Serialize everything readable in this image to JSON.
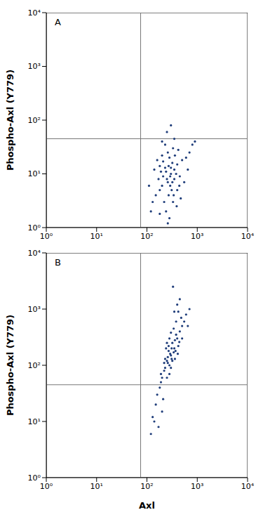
{
  "chart_data": [
    {
      "type": "scatter",
      "annotation": "A",
      "ylabel": "Phospho-Axl (Y779)",
      "log": true,
      "color": "#1f3d7a",
      "xlim": [
        1,
        10000
      ],
      "ylim": [
        1,
        10000
      ],
      "xticks": [
        {
          "value": 1,
          "label": "10⁰"
        },
        {
          "value": 10,
          "label": "10¹"
        },
        {
          "value": 100,
          "label": "10²"
        },
        {
          "value": 1000,
          "label": "10³"
        },
        {
          "value": 10000,
          "label": "10⁴"
        }
      ],
      "yticks": [
        {
          "value": 1,
          "label": "10⁰"
        },
        {
          "value": 10,
          "label": "10¹"
        },
        {
          "value": 100,
          "label": "10²"
        },
        {
          "value": 1000,
          "label": "10³"
        },
        {
          "value": 10000,
          "label": "10⁴"
        }
      ],
      "quadrant": {
        "x": 75,
        "y": 45
      },
      "x": [
        250,
        300,
        200,
        350,
        180,
        400,
        280,
        220,
        320,
        260,
        150,
        450,
        500,
        240,
        330,
        190,
        270,
        310,
        210,
        360,
        130,
        170,
        230,
        290,
        340,
        380,
        420,
        600,
        700,
        800,
        900,
        120,
        110,
        140,
        160,
        200,
        250,
        300,
        350,
        280,
        260,
        180,
        390,
        470,
        550,
        650,
        230,
        320,
        270,
        240,
        300,
        210,
        350,
        400,
        260,
        200,
        330,
        180,
        440,
        290
      ],
      "values": [
        8,
        10,
        6,
        12,
        5,
        15,
        20,
        3,
        7,
        25,
        4,
        9,
        18,
        2,
        30,
        11,
        14,
        5,
        9,
        22,
        3,
        8,
        13,
        6,
        4,
        10,
        28,
        20,
        25,
        35,
        40,
        2,
        6,
        12,
        18,
        40,
        60,
        80,
        45,
        1.5,
        1.2,
        1.8,
        2.5,
        3.5,
        7,
        12,
        35,
        16,
        4,
        11,
        13,
        17,
        8,
        5,
        7,
        22,
        3,
        14,
        6,
        9
      ]
    },
    {
      "type": "scatter",
      "annotation": "B",
      "ylabel": "Phospho-Axl (Y779)",
      "xlabel": "Axl",
      "log": true,
      "color": "#1f3d7a",
      "xlim": [
        1,
        10000
      ],
      "ylim": [
        1,
        10000
      ],
      "xticks": [
        {
          "value": 1,
          "label": "10⁰"
        },
        {
          "value": 10,
          "label": "10¹"
        },
        {
          "value": 100,
          "label": "10²"
        },
        {
          "value": 1000,
          "label": "10³"
        },
        {
          "value": 10000,
          "label": "10⁴"
        }
      ],
      "yticks": [
        {
          "value": 1,
          "label": "10⁰"
        },
        {
          "value": 10,
          "label": "10¹"
        },
        {
          "value": 100,
          "label": "10²"
        },
        {
          "value": 1000,
          "label": "10³"
        },
        {
          "value": 10000,
          "label": "10⁴"
        }
      ],
      "quadrant": {
        "x": 75,
        "y": 45
      },
      "x": [
        300,
        250,
        350,
        400,
        280,
        220,
        450,
        500,
        320,
        270,
        200,
        180,
        230,
        380,
        420,
        260,
        340,
        300,
        240,
        360,
        480,
        550,
        400,
        350,
        450,
        330,
        600,
        700,
        650,
        160,
        150,
        140,
        170,
        200,
        210,
        190,
        130,
        120,
        250,
        280,
        310,
        290,
        260,
        230,
        270,
        320,
        370,
        410,
        440,
        300,
        280,
        340,
        250,
        220,
        190,
        360,
        500,
        380,
        420,
        310
      ],
      "values": [
        150,
        120,
        200,
        300,
        100,
        80,
        400,
        500,
        250,
        180,
        60,
        40,
        90,
        350,
        220,
        140,
        170,
        90,
        200,
        280,
        700,
        600,
        1200,
        900,
        1500,
        2500,
        800,
        1000,
        500,
        30,
        20,
        10,
        8,
        15,
        25,
        50,
        12,
        6,
        60,
        70,
        130,
        160,
        110,
        130,
        220,
        120,
        180,
        160,
        260,
        380,
        300,
        450,
        250,
        110,
        70,
        130,
        300,
        600,
        900,
        200
      ]
    }
  ]
}
